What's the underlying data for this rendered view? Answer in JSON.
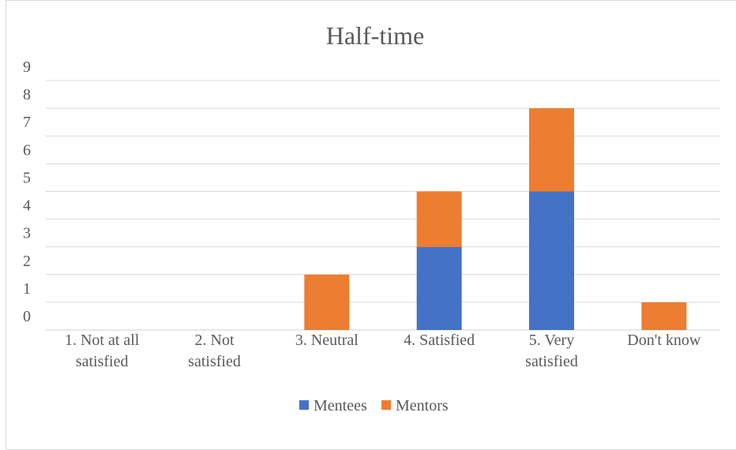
{
  "chart_data": {
    "type": "bar",
    "stacked": true,
    "title": "Half-time",
    "xlabel": "",
    "ylabel": "",
    "categories": [
      [
        "1. Not at all",
        "satisfied"
      ],
      [
        "2.  Not",
        "satisfied"
      ],
      [
        "3. Neutral"
      ],
      [
        "4. Satisfied"
      ],
      [
        "5. Very",
        "satisfied"
      ],
      [
        "Don't know"
      ]
    ],
    "series": [
      {
        "name": "Mentees",
        "color": "#4472C4",
        "values": [
          0,
          0,
          0,
          3,
          5,
          0
        ]
      },
      {
        "name": "Mentors",
        "color": "#ED7D31",
        "values": [
          0,
          0,
          2,
          2,
          3,
          1
        ]
      }
    ],
    "ylim": [
      0,
      9
    ],
    "yticks": [
      "0",
      "1",
      "2",
      "3",
      "4",
      "5",
      "6",
      "7",
      "8",
      "9"
    ],
    "grid": true,
    "legend_position": "bottom"
  }
}
